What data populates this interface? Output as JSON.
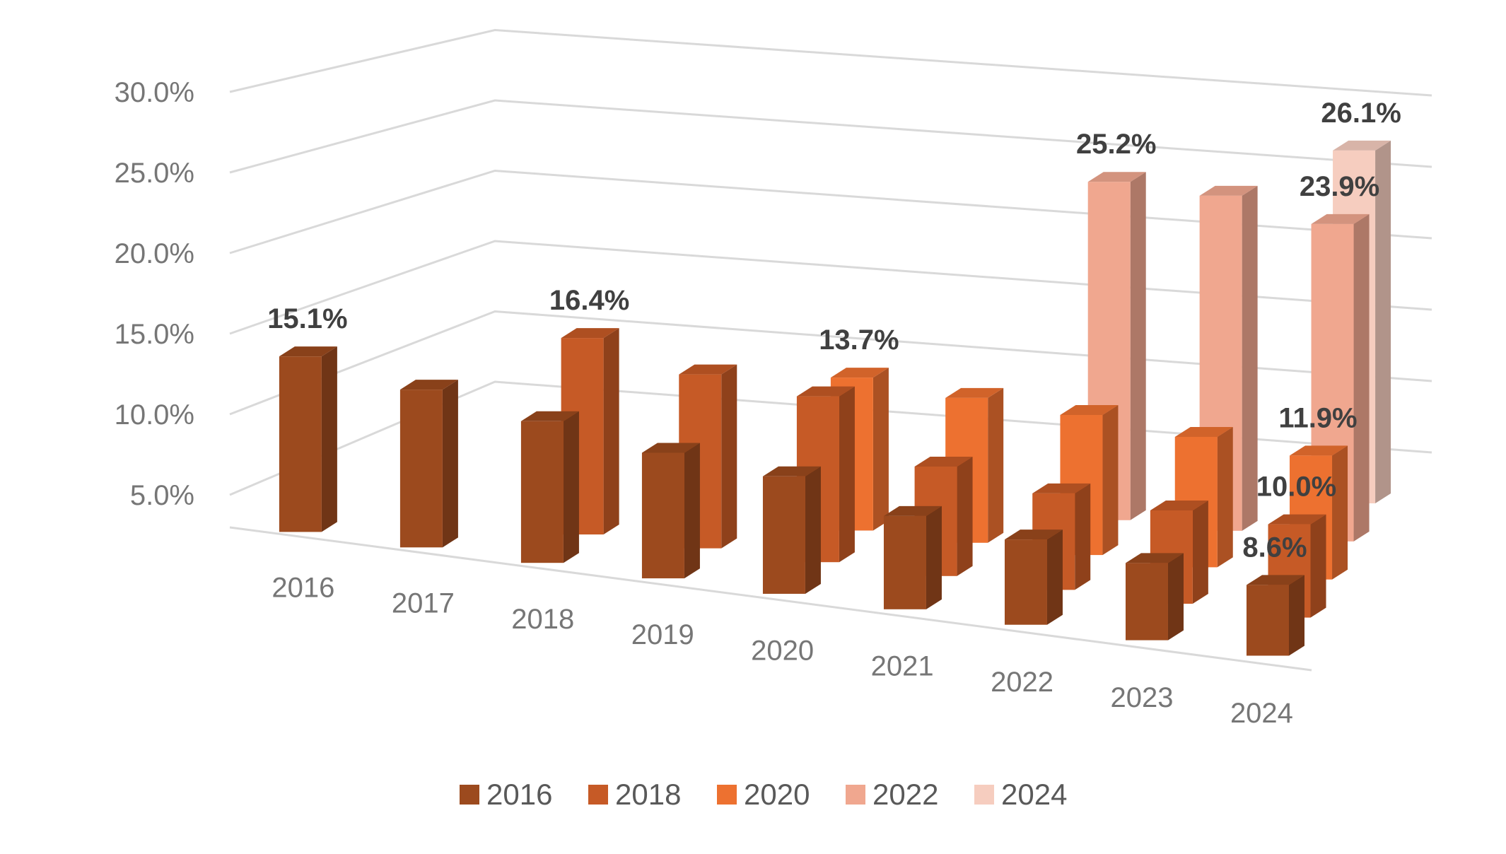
{
  "chart_data": {
    "type": "bar",
    "subtype": "3d-column",
    "title": "",
    "xlabel": "",
    "ylabel": "",
    "ylim": [
      5,
      30
    ],
    "yticks": [
      "5.0%",
      "10.0%",
      "15.0%",
      "20.0%",
      "25.0%",
      "30.0%"
    ],
    "categories": [
      "2016",
      "2017",
      "2018",
      "2019",
      "2020",
      "2021",
      "2022",
      "2023",
      "2024"
    ],
    "series": [
      {
        "name": "2016",
        "color": "#9c4a1e",
        "values": [
          15.1,
          14.0,
          13.0,
          12.0,
          11.5,
          10.0,
          9.5,
          9.0,
          8.6
        ],
        "labels": [
          "15.1%",
          "",
          "",
          "",
          "",
          "",
          "",
          "",
          "8.6%"
        ]
      },
      {
        "name": "2018",
        "color": "#c65a26",
        "values": [
          null,
          null,
          16.4,
          15.0,
          14.5,
          11.0,
          10.2,
          10.0,
          10.0
        ],
        "labels": [
          "",
          "",
          "16.4%",
          "",
          "",
          "",
          "",
          "",
          "10.0%"
        ]
      },
      {
        "name": "2020",
        "color": "#ed7130",
        "values": [
          null,
          null,
          null,
          null,
          13.7,
          13.2,
          12.9,
          12.3,
          11.9
        ],
        "labels": [
          "",
          "",
          "",
          "",
          "13.7%",
          "",
          "",
          "",
          "11.9%"
        ]
      },
      {
        "name": "2022",
        "color": "#f0a78f",
        "values": [
          null,
          null,
          null,
          null,
          null,
          null,
          25.2,
          25.0,
          23.9
        ],
        "labels": [
          "",
          "",
          "",
          "",
          "",
          "",
          "25.2%",
          "",
          "23.9%"
        ]
      },
      {
        "name": "2024",
        "color": "#f6cdbf",
        "values": [
          null,
          null,
          null,
          null,
          null,
          null,
          null,
          null,
          26.1
        ],
        "labels": [
          "",
          "",
          "",
          "",
          "",
          "",
          "",
          "",
          "26.1%"
        ]
      }
    ],
    "legend": "bottom",
    "grid": true
  }
}
